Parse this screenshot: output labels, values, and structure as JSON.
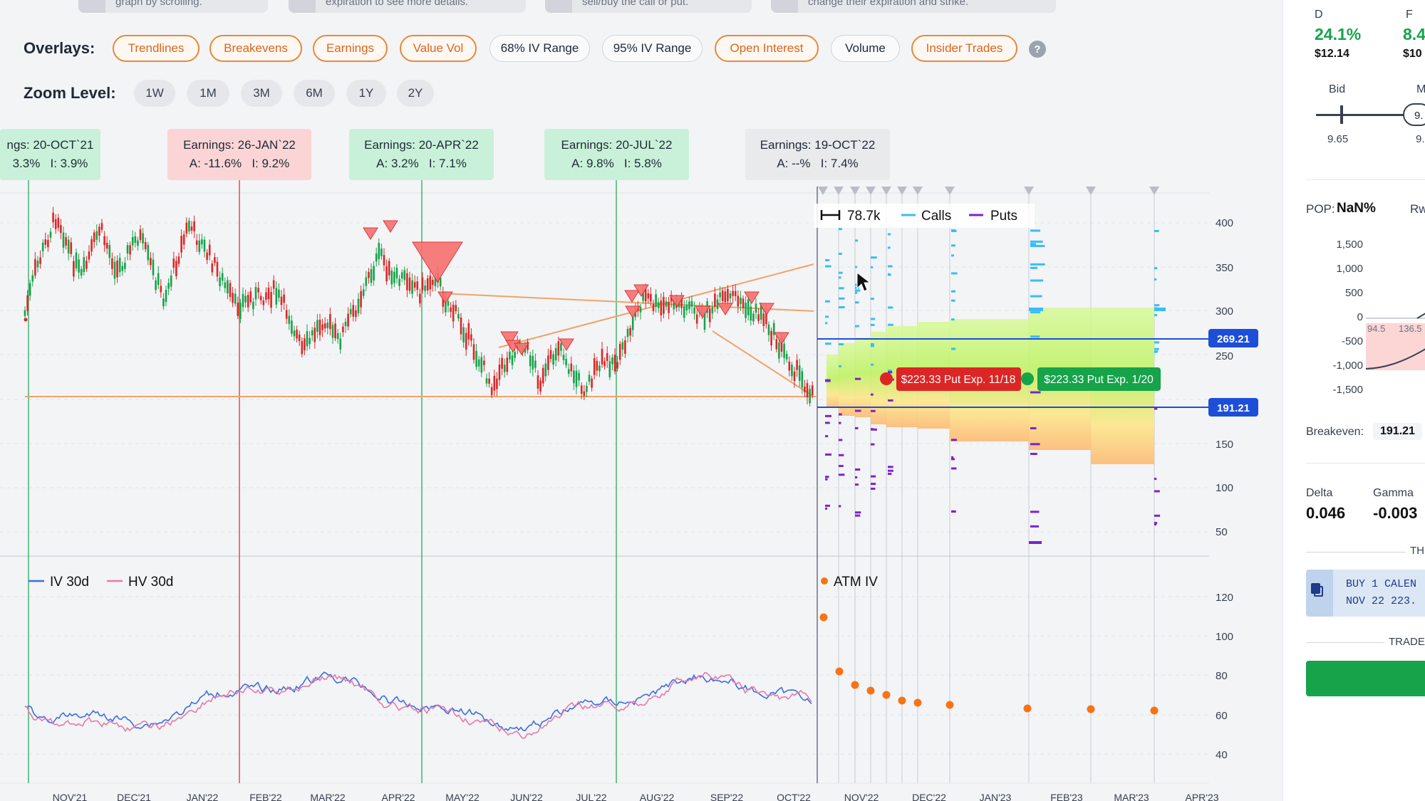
{
  "tips": [
    "graph by scrolling.",
    "expiration to see more details.",
    "sell/buy the call or put.",
    "change their expiration and strike."
  ],
  "overlays": {
    "label": "Overlays:",
    "items": [
      {
        "label": "Trendlines",
        "active": true
      },
      {
        "label": "Breakevens",
        "active": true
      },
      {
        "label": "Earnings",
        "active": true
      },
      {
        "label": "Value Vol",
        "active": true
      },
      {
        "label": "68% IV Range",
        "active": false
      },
      {
        "label": "95% IV Range",
        "active": false
      },
      {
        "label": "Open Interest",
        "active": true
      },
      {
        "label": "Volume",
        "active": false
      },
      {
        "label": "Insider Trades",
        "active": true
      }
    ],
    "help": "?"
  },
  "zoom": {
    "label": "Zoom Level:",
    "levels": [
      "1W",
      "1M",
      "3M",
      "6M",
      "1Y",
      "2Y"
    ]
  },
  "earnings": [
    {
      "title": "ngs: 20-OCT`21",
      "a": "3.3%",
      "i": "I: 3.9%",
      "color": "green"
    },
    {
      "title": "Earnings: 26-JAN`22",
      "a": "A: -11.6%",
      "i": "I: 9.2%",
      "color": "red"
    },
    {
      "title": "Earnings: 20-APR`22",
      "a": "A: 3.2%",
      "i": "I: 7.1%",
      "color": "green"
    },
    {
      "title": "Earnings: 20-JUL`22",
      "a": "A: 9.8%",
      "i": "I: 5.8%",
      "color": "green"
    },
    {
      "title": "Earnings: 19-OCT`22",
      "a": "A: --%",
      "i": "I: 7.4%",
      "color": "gray"
    }
  ],
  "legend": {
    "oi_scale": "78.7k",
    "calls": "Calls",
    "puts": "Puts"
  },
  "price_axis": [
    "400",
    "350",
    "300",
    "250",
    "150",
    "100",
    "50"
  ],
  "price_markers": {
    "upper": "269.21",
    "lower": "191.21"
  },
  "trades": [
    {
      "label": "$223.33 Put Exp. 11/18",
      "color": "#dc2626"
    },
    {
      "label": "$223.33 Put Exp. 1/20",
      "color": "#16a34a"
    }
  ],
  "iv_legend": {
    "iv": "IV 30d",
    "hv": "HV 30d",
    "atm": "ATM IV"
  },
  "iv_axis": [
    "120",
    "100",
    "80",
    "60",
    "40"
  ],
  "x_axis": [
    "NOV'21",
    "DEC'21",
    "JAN'22",
    "FEB'22",
    "MAR'22",
    "APR'22",
    "MAY'22",
    "JUN'22",
    "JUL'22",
    "AUG'22",
    "SEP'22",
    "OCT'22",
    "NOV'22",
    "DEC'22",
    "JAN'23",
    "FEB'23",
    "MAR'23",
    "APR'23"
  ],
  "side": {
    "col_d": "D",
    "col_f": "F",
    "d_pct": "24.1%",
    "f_pct": "8.4",
    "d_price": "$12.14",
    "f_price": "$10",
    "bid_label": "Bid",
    "mid_label": "M",
    "bid_value": "9.65",
    "mid_value": "9.",
    "slider_knob": "9.",
    "pop_label": "POP:",
    "pop_value": "NaN%",
    "rw": "Rw",
    "pl_axis": [
      "1,500",
      "1,000",
      "500",
      "0",
      "-500",
      "-1,000",
      "-1,500"
    ],
    "pl_marks": [
      "94.5",
      "136.5"
    ],
    "breakeven_label": "Breakeven:",
    "breakeven_value": "191.21",
    "delta_label": "Delta",
    "delta_value": "0.046",
    "gamma_label": "Gamma",
    "gamma_value": "-0.003",
    "th": "TH",
    "order_line1": "BUY 1 CALEN",
    "order_line2": "NOV 22 223.",
    "trade_label": "TRADE C"
  }
}
